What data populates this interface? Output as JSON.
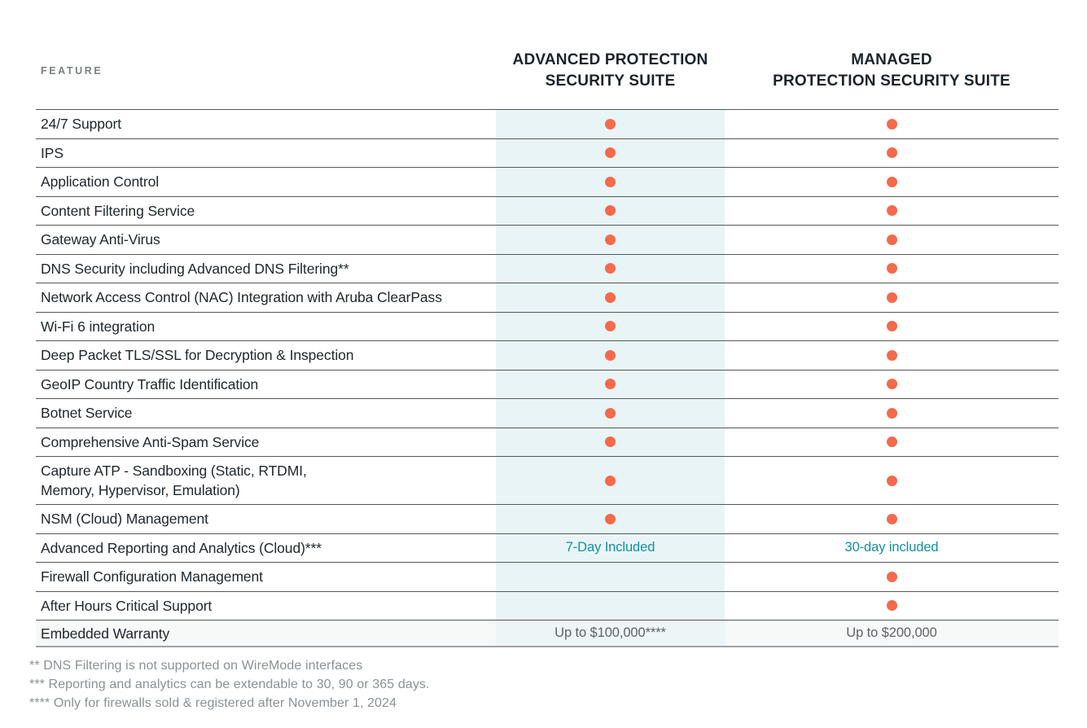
{
  "colors": {
    "accent_orange": "#F6694A",
    "accent_teal": "#1191A1",
    "column_highlight": "#E9F4F7",
    "row_line": "#54585B",
    "header_text": "#1B232B",
    "row_text": "#21282E",
    "muted_text": "#5D6367",
    "footnote_text": "#8B9196"
  },
  "table": {
    "feature_header": "FEATURE",
    "columns": [
      {
        "title": "ADVANCED PROTECTION\nSECURITY SUITE"
      },
      {
        "title": "MANAGED\nPROTECTION SECURITY SUITE"
      }
    ],
    "rows": [
      {
        "label": "24/7 Support",
        "advanced": {
          "type": "dot"
        },
        "managed": {
          "type": "dot"
        }
      },
      {
        "label": "IPS",
        "advanced": {
          "type": "dot"
        },
        "managed": {
          "type": "dot"
        }
      },
      {
        "label": "Application Control",
        "advanced": {
          "type": "dot"
        },
        "managed": {
          "type": "dot"
        }
      },
      {
        "label": "Content Filtering Service",
        "advanced": {
          "type": "dot"
        },
        "managed": {
          "type": "dot"
        }
      },
      {
        "label": "Gateway Anti-Virus",
        "advanced": {
          "type": "dot"
        },
        "managed": {
          "type": "dot"
        }
      },
      {
        "label": "DNS Security including Advanced DNS Filtering**",
        "advanced": {
          "type": "dot"
        },
        "managed": {
          "type": "dot"
        }
      },
      {
        "label": "Network Access Control (NAC) Integration with Aruba ClearPass",
        "advanced": {
          "type": "dot"
        },
        "managed": {
          "type": "dot"
        }
      },
      {
        "label": "Wi-Fi 6 integration",
        "advanced": {
          "type": "dot"
        },
        "managed": {
          "type": "dot"
        }
      },
      {
        "label": "Deep Packet TLS/SSL for Decryption & Inspection",
        "advanced": {
          "type": "dot"
        },
        "managed": {
          "type": "dot"
        }
      },
      {
        "label": "GeoIP Country Traffic Identification",
        "advanced": {
          "type": "dot"
        },
        "managed": {
          "type": "dot"
        }
      },
      {
        "label": "Botnet Service",
        "advanced": {
          "type": "dot"
        },
        "managed": {
          "type": "dot"
        }
      },
      {
        "label": "Comprehensive Anti-Spam Service",
        "advanced": {
          "type": "dot"
        },
        "managed": {
          "type": "dot"
        }
      },
      {
        "label": "Capture ATP -  Sandboxing (Static, RTDMI,\nMemory, Hypervisor, Emulation)",
        "tall": true,
        "advanced": {
          "type": "dot"
        },
        "managed": {
          "type": "dot"
        }
      },
      {
        "label": "NSM (Cloud) Management",
        "advanced": {
          "type": "dot"
        },
        "managed": {
          "type": "dot"
        }
      },
      {
        "label": "Advanced Reporting and Analytics (Cloud)***",
        "advanced": {
          "type": "text",
          "text": "7-Day Included",
          "style": "teal"
        },
        "managed": {
          "type": "text",
          "text": "30-day included",
          "style": "teal"
        }
      },
      {
        "label": "Firewall Configuration Management",
        "advanced": {
          "type": "empty"
        },
        "managed": {
          "type": "dot"
        }
      },
      {
        "label": "After Hours Critical Support",
        "advanced": {
          "type": "empty"
        },
        "managed": {
          "type": "dot"
        }
      },
      {
        "label": "Embedded Warranty",
        "last": true,
        "advanced": {
          "type": "text",
          "text": "Up to $100,000****",
          "style": "gray"
        },
        "managed": {
          "type": "text",
          "text": "Up to $200,000",
          "style": "gray"
        }
      }
    ]
  },
  "footnotes": [
    "** DNS Filtering is not supported on WireMode interfaces",
    "*** Reporting and analytics can be extendable to 30, 90 or 365 days.",
    "**** Only for firewalls sold & registered after November 1, 2024"
  ]
}
